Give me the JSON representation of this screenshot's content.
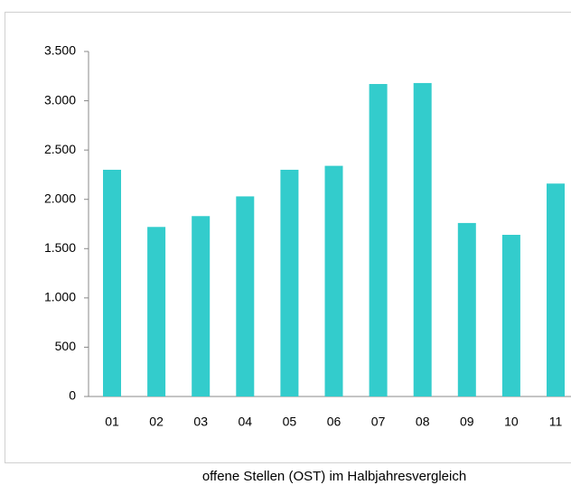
{
  "chart_data": {
    "type": "bar",
    "title": "offene Stellen (OST) im Halbjahresvergleich",
    "categories": [
      "01",
      "02",
      "03",
      "04",
      "05",
      "06",
      "07",
      "08",
      "09",
      "10",
      "11"
    ],
    "values": [
      2300,
      1720,
      1830,
      2030,
      2300,
      2340,
      3170,
      3180,
      1760,
      1640,
      2160
    ],
    "color": "#33cccc",
    "ylim": [
      0,
      3500
    ],
    "yticks": [
      0,
      500,
      {
        "value": 1000,
        "label": "1.000"
      },
      {
        "value": 1500,
        "label": "1.500"
      },
      {
        "value": 2000,
        "label": "2.000"
      },
      {
        "value": 2500,
        "label": "2.500"
      },
      {
        "value": 3000,
        "label": "3.000"
      },
      {
        "value": 3500,
        "label": "3.500"
      }
    ],
    "grid": false
  }
}
